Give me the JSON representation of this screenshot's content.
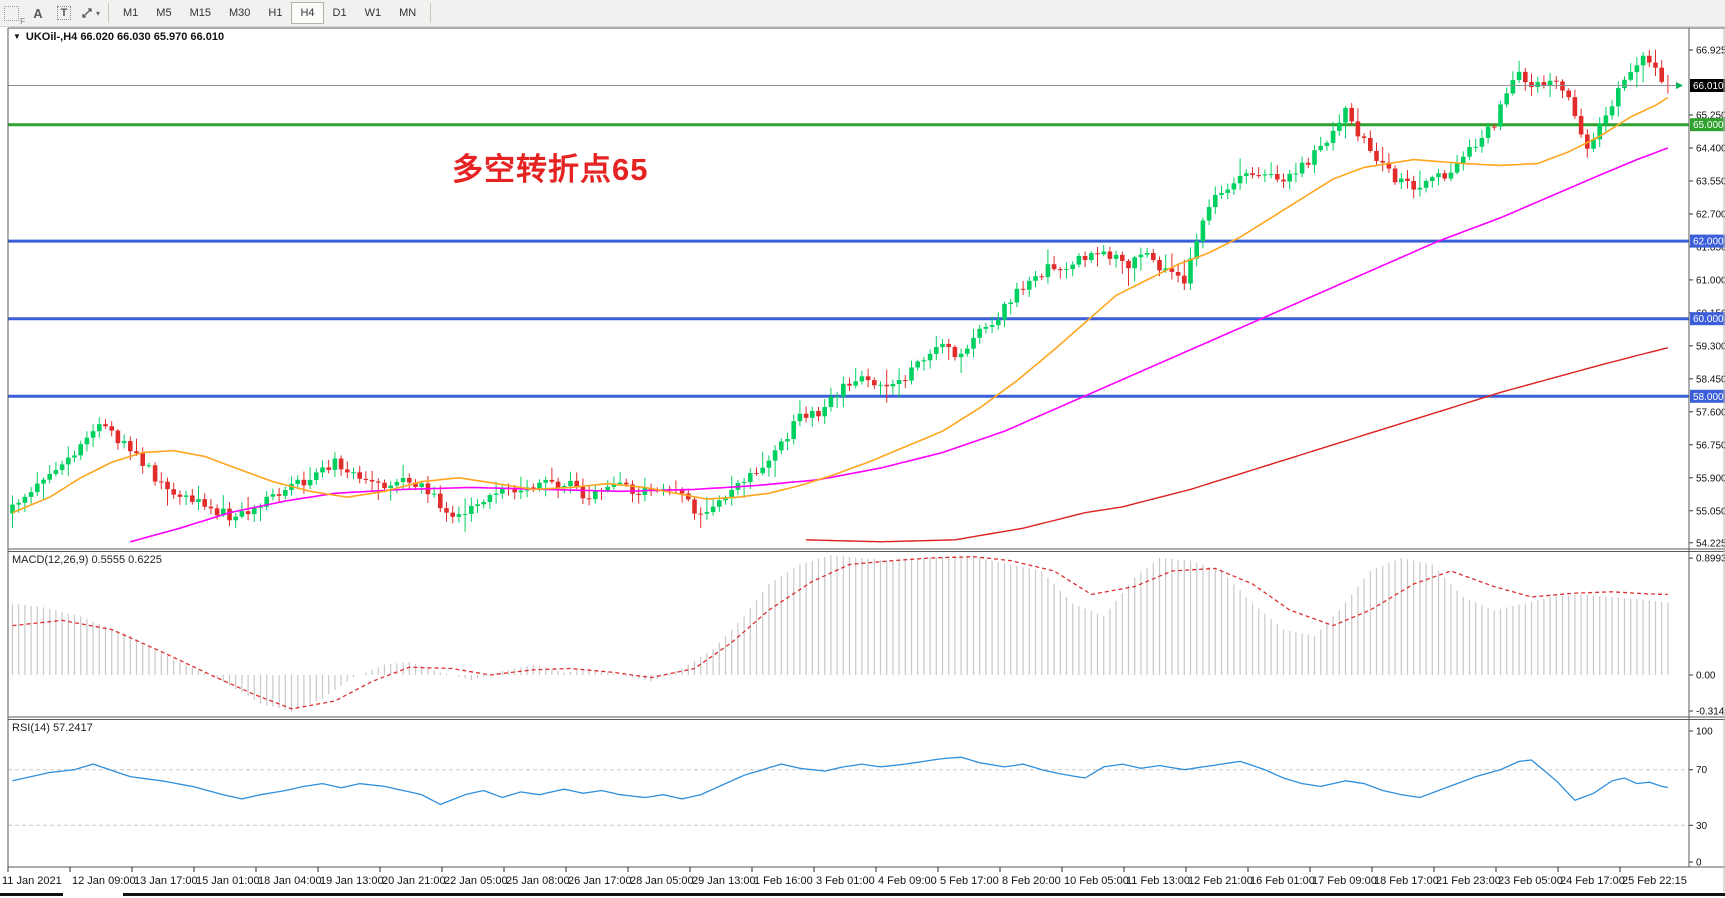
{
  "toolbar": {
    "grip_label": "F",
    "tools": [
      {
        "name": "font-tool",
        "label": "A"
      },
      {
        "name": "text-box-tool",
        "label": "T"
      }
    ],
    "timeframes": [
      "M1",
      "M5",
      "M15",
      "M30",
      "H1",
      "H4",
      "D1",
      "W1",
      "MN"
    ],
    "active_timeframe": "H4"
  },
  "chart_header": {
    "dropdown_icon": "▼",
    "title": "UKOil-,H4  66.020 66.030 65.970 66.010"
  },
  "annotation": {
    "text": "多空转折点65"
  },
  "macd_panel": {
    "label": "MACD(12,26,9) 0.5555 0.6225"
  },
  "rsi_panel": {
    "label": "RSI(14) 57.2417"
  },
  "colors": {
    "up": "#00d05f",
    "down": "#e22b2b",
    "ma_fast": "#ffa51e",
    "ma_mid": "#ff00ff",
    "ma_slow": "#dd2020",
    "level_blue": "#3b5fd9",
    "level_green": "#2ea12e",
    "current_line": "#8b9095",
    "current_badge": "#000000",
    "current_arrow": "#00b050",
    "macd_hist": "#c8c8c8",
    "macd_signal": "#dc3030",
    "rsi_line": "#2d8fdd",
    "rsi_level": "#c8c8c8",
    "annotation": "#e62323",
    "axis_text": "#111111",
    "border": "#5a5a5a"
  },
  "chart_data": {
    "type": "candlestick",
    "symbol": "UKOil-",
    "timeframe": "H4",
    "current": {
      "open": 66.02,
      "high": 66.03,
      "low": 65.97,
      "close": 66.01
    },
    "y_range": [
      54.225,
      66.925
    ],
    "y_ticks": [
      66.925,
      65.25,
      64.4,
      63.55,
      62.7,
      61.85,
      61.0,
      60.15,
      59.3,
      58.45,
      57.6,
      56.75,
      55.9,
      55.05,
      54.225
    ],
    "x_labels": [
      "11 Jan 2021",
      "12 Jan 09:00",
      "13 Jan 17:00",
      "15 Jan 01:00",
      "18 Jan 04:00",
      "19 Jan 13:00",
      "20 Jan 21:00",
      "22 Jan 05:00",
      "25 Jan 08:00",
      "26 Jan 17:00",
      "28 Jan 05:00",
      "29 Jan 13:00",
      "1 Feb 16:00",
      "3 Feb 01:00",
      "4 Feb 09:00",
      "5 Feb 17:00",
      "8 Feb 20:00",
      "10 Feb 05:00",
      "11 Feb 13:00",
      "12 Feb 21:00",
      "16 Feb 01:00",
      "17 Feb 09:00",
      "18 Feb 17:00",
      "21 Feb 23:00",
      "23 Feb 05:00",
      "24 Feb 17:00",
      "25 Feb 22:15"
    ],
    "horizontal_levels": [
      {
        "price": 66.01,
        "label": "66.010",
        "style": "current"
      },
      {
        "price": 65.0,
        "label": "65.000",
        "style": "green"
      },
      {
        "price": 62.0,
        "label": "62.000",
        "style": "blue"
      },
      {
        "price": 60.0,
        "label": "60.000",
        "style": "blue"
      },
      {
        "price": 58.0,
        "label": "58.000",
        "style": "blue"
      }
    ],
    "candles": 268,
    "price_path": [
      [
        0,
        55.1
      ],
      [
        5,
        55.9
      ],
      [
        9,
        56.3
      ],
      [
        14,
        57.3
      ],
      [
        19,
        56.6
      ],
      [
        25,
        55.6
      ],
      [
        30,
        55.3
      ],
      [
        35,
        54.9
      ],
      [
        39,
        55.1
      ],
      [
        43,
        55.5
      ],
      [
        48,
        55.9
      ],
      [
        52,
        56.3
      ],
      [
        56,
        56.0
      ],
      [
        60,
        55.7
      ],
      [
        64,
        55.9
      ],
      [
        68,
        55.4
      ],
      [
        71,
        54.8
      ],
      [
        75,
        55.3
      ],
      [
        80,
        55.6
      ],
      [
        85,
        55.7
      ],
      [
        89,
        55.8
      ],
      [
        93,
        55.4
      ],
      [
        97,
        55.8
      ],
      [
        101,
        55.5
      ],
      [
        105,
        55.7
      ],
      [
        108,
        55.4
      ],
      [
        111,
        54.9
      ],
      [
        114,
        55.4
      ],
      [
        118,
        55.8
      ],
      [
        123,
        56.5
      ],
      [
        127,
        57.5
      ],
      [
        130,
        57.6
      ],
      [
        134,
        58.2
      ],
      [
        137,
        58.4
      ],
      [
        140,
        58.3
      ],
      [
        144,
        58.5
      ],
      [
        147,
        59.0
      ],
      [
        150,
        59.3
      ],
      [
        152,
        59.0
      ],
      [
        155,
        59.5
      ],
      [
        158,
        59.9
      ],
      [
        161,
        60.5
      ],
      [
        164,
        61.0
      ],
      [
        167,
        61.3
      ],
      [
        169,
        61.3
      ],
      [
        172,
        61.5
      ],
      [
        175,
        61.7
      ],
      [
        177,
        61.6
      ],
      [
        180,
        61.4
      ],
      [
        183,
        61.6
      ],
      [
        186,
        61.2
      ],
      [
        189,
        61.0
      ],
      [
        192,
        62.5
      ],
      [
        194,
        63.1
      ],
      [
        197,
        63.5
      ],
      [
        200,
        63.7
      ],
      [
        202,
        63.7
      ],
      [
        205,
        63.6
      ],
      [
        208,
        63.9
      ],
      [
        211,
        64.4
      ],
      [
        213,
        64.8
      ],
      [
        215,
        65.4
      ],
      [
        217,
        64.8
      ],
      [
        219,
        64.3
      ],
      [
        221,
        63.9
      ],
      [
        224,
        63.5
      ],
      [
        227,
        63.4
      ],
      [
        229,
        63.6
      ],
      [
        232,
        63.8
      ],
      [
        235,
        64.3
      ],
      [
        239,
        65.0
      ],
      [
        241,
        65.9
      ],
      [
        243,
        66.4
      ],
      [
        245,
        66.0
      ],
      [
        248,
        66.2
      ],
      [
        251,
        65.6
      ],
      [
        254,
        64.4
      ],
      [
        257,
        65.2
      ],
      [
        260,
        66.2
      ],
      [
        263,
        66.85
      ],
      [
        265,
        66.4
      ],
      [
        267,
        66.01
      ]
    ],
    "ma_fast_path": [
      [
        0,
        55.0
      ],
      [
        6,
        55.4
      ],
      [
        11,
        55.9
      ],
      [
        16,
        56.3
      ],
      [
        21,
        56.55
      ],
      [
        26,
        56.6
      ],
      [
        31,
        56.45
      ],
      [
        36,
        56.15
      ],
      [
        42,
        55.8
      ],
      [
        48,
        55.55
      ],
      [
        54,
        55.4
      ],
      [
        60,
        55.55
      ],
      [
        66,
        55.8
      ],
      [
        72,
        55.9
      ],
      [
        78,
        55.75
      ],
      [
        84,
        55.6
      ],
      [
        90,
        55.65
      ],
      [
        96,
        55.75
      ],
      [
        102,
        55.65
      ],
      [
        107,
        55.5
      ],
      [
        112,
        55.35
      ],
      [
        117,
        55.4
      ],
      [
        122,
        55.5
      ],
      [
        127,
        55.7
      ],
      [
        132,
        55.95
      ],
      [
        138,
        56.3
      ],
      [
        144,
        56.7
      ],
      [
        150,
        57.1
      ],
      [
        156,
        57.7
      ],
      [
        162,
        58.4
      ],
      [
        168,
        59.2
      ],
      [
        173,
        59.9
      ],
      [
        178,
        60.6
      ],
      [
        183,
        61.0
      ],
      [
        188,
        61.4
      ],
      [
        193,
        61.7
      ],
      [
        198,
        62.1
      ],
      [
        203,
        62.6
      ],
      [
        208,
        63.1
      ],
      [
        213,
        63.6
      ],
      [
        218,
        63.9
      ],
      [
        226,
        64.1
      ],
      [
        234,
        64.0
      ],
      [
        240,
        63.95
      ],
      [
        246,
        64.0
      ],
      [
        251,
        64.3
      ],
      [
        256,
        64.7
      ],
      [
        261,
        65.2
      ],
      [
        265,
        65.5
      ],
      [
        267,
        65.7
      ]
    ],
    "ma_mid_path": [
      [
        19,
        54.25
      ],
      [
        27,
        54.6
      ],
      [
        35,
        55.0
      ],
      [
        44,
        55.3
      ],
      [
        52,
        55.5
      ],
      [
        63,
        55.6
      ],
      [
        74,
        55.65
      ],
      [
        86,
        55.6
      ],
      [
        98,
        55.55
      ],
      [
        110,
        55.6
      ],
      [
        120,
        55.7
      ],
      [
        130,
        55.85
      ],
      [
        140,
        56.15
      ],
      [
        150,
        56.55
      ],
      [
        160,
        57.1
      ],
      [
        170,
        57.8
      ],
      [
        180,
        58.5
      ],
      [
        190,
        59.2
      ],
      [
        200,
        59.9
      ],
      [
        210,
        60.6
      ],
      [
        220,
        61.3
      ],
      [
        230,
        62.0
      ],
      [
        240,
        62.6
      ],
      [
        248,
        63.15
      ],
      [
        256,
        63.7
      ],
      [
        262,
        64.1
      ],
      [
        267,
        64.4
      ]
    ],
    "ma_slow_path": [
      [
        128,
        54.3
      ],
      [
        140,
        54.25
      ],
      [
        152,
        54.3
      ],
      [
        163,
        54.6
      ],
      [
        173,
        55.0
      ],
      [
        179,
        55.15
      ],
      [
        190,
        55.6
      ],
      [
        200,
        56.1
      ],
      [
        210,
        56.6
      ],
      [
        220,
        57.1
      ],
      [
        230,
        57.6
      ],
      [
        240,
        58.1
      ],
      [
        248,
        58.45
      ],
      [
        256,
        58.8
      ],
      [
        262,
        59.05
      ],
      [
        267,
        59.25
      ]
    ],
    "macd": {
      "params": "12,26,9",
      "main": 0.5555,
      "signal": 0.6225,
      "y_ticks": [
        0.8993,
        0,
        -0.3143
      ],
      "y_range": [
        -0.4,
        0.97
      ],
      "histogram_path": [
        [
          0,
          0.55
        ],
        [
          5,
          0.52
        ],
        [
          11,
          0.45
        ],
        [
          19,
          0.3
        ],
        [
          26,
          0.12
        ],
        [
          32,
          0.0
        ],
        [
          35,
          -0.08
        ],
        [
          40,
          -0.22
        ],
        [
          45,
          -0.28
        ],
        [
          50,
          -0.18
        ],
        [
          55,
          -0.02
        ],
        [
          60,
          0.08
        ],
        [
          64,
          0.1
        ],
        [
          69,
          0.02
        ],
        [
          74,
          -0.04
        ],
        [
          79,
          0.03
        ],
        [
          84,
          0.08
        ],
        [
          89,
          0.02
        ],
        [
          93,
          0.05
        ],
        [
          98,
          0.0
        ],
        [
          103,
          -0.05
        ],
        [
          108,
          0.05
        ],
        [
          113,
          0.2
        ],
        [
          118,
          0.45
        ],
        [
          122,
          0.7
        ],
        [
          127,
          0.85
        ],
        [
          132,
          0.92
        ],
        [
          137,
          0.9
        ],
        [
          142,
          0.88
        ],
        [
          147,
          0.9
        ],
        [
          152,
          0.92
        ],
        [
          156,
          0.9
        ],
        [
          161,
          0.85
        ],
        [
          166,
          0.8
        ],
        [
          171,
          0.55
        ],
        [
          176,
          0.45
        ],
        [
          181,
          0.75
        ],
        [
          185,
          0.9
        ],
        [
          190,
          0.88
        ],
        [
          195,
          0.8
        ],
        [
          200,
          0.55
        ],
        [
          205,
          0.35
        ],
        [
          210,
          0.3
        ],
        [
          214,
          0.5
        ],
        [
          219,
          0.8
        ],
        [
          224,
          0.9
        ],
        [
          229,
          0.85
        ],
        [
          234,
          0.6
        ],
        [
          239,
          0.5
        ],
        [
          244,
          0.55
        ],
        [
          248,
          0.6
        ],
        [
          253,
          0.62
        ],
        [
          258,
          0.6
        ],
        [
          263,
          0.58
        ],
        [
          267,
          0.556
        ]
      ],
      "signal_path": [
        [
          0,
          0.38
        ],
        [
          8,
          0.42
        ],
        [
          16,
          0.35
        ],
        [
          24,
          0.18
        ],
        [
          32,
          0.0
        ],
        [
          39,
          -0.15
        ],
        [
          45,
          -0.26
        ],
        [
          52,
          -0.2
        ],
        [
          58,
          -0.05
        ],
        [
          64,
          0.06
        ],
        [
          71,
          0.05
        ],
        [
          77,
          0.0
        ],
        [
          84,
          0.04
        ],
        [
          90,
          0.05
        ],
        [
          97,
          0.02
        ],
        [
          103,
          -0.02
        ],
        [
          110,
          0.05
        ],
        [
          116,
          0.25
        ],
        [
          122,
          0.5
        ],
        [
          129,
          0.72
        ],
        [
          135,
          0.85
        ],
        [
          142,
          0.88
        ],
        [
          148,
          0.9
        ],
        [
          155,
          0.91
        ],
        [
          161,
          0.88
        ],
        [
          168,
          0.8
        ],
        [
          174,
          0.62
        ],
        [
          181,
          0.68
        ],
        [
          187,
          0.8
        ],
        [
          194,
          0.82
        ],
        [
          200,
          0.7
        ],
        [
          206,
          0.5
        ],
        [
          213,
          0.38
        ],
        [
          219,
          0.5
        ],
        [
          226,
          0.7
        ],
        [
          232,
          0.8
        ],
        [
          239,
          0.68
        ],
        [
          245,
          0.6
        ],
        [
          252,
          0.63
        ],
        [
          258,
          0.64
        ],
        [
          264,
          0.623
        ],
        [
          267,
          0.62
        ]
      ]
    },
    "rsi": {
      "period": 14,
      "value": 57.2417,
      "y_ticks": [
        100,
        70,
        30,
        0
      ],
      "levels": [
        70,
        30
      ],
      "path": [
        [
          0,
          62
        ],
        [
          3,
          65
        ],
        [
          6,
          68
        ],
        [
          10,
          70
        ],
        [
          13,
          74
        ],
        [
          15,
          71
        ],
        [
          19,
          65
        ],
        [
          24,
          62
        ],
        [
          29,
          58
        ],
        [
          34,
          52
        ],
        [
          37,
          49
        ],
        [
          40,
          52
        ],
        [
          44,
          55
        ],
        [
          47,
          58
        ],
        [
          50,
          60
        ],
        [
          53,
          57
        ],
        [
          56,
          60
        ],
        [
          60,
          58
        ],
        [
          63,
          55
        ],
        [
          66,
          52
        ],
        [
          69,
          45
        ],
        [
          73,
          52
        ],
        [
          76,
          55
        ],
        [
          79,
          50
        ],
        [
          82,
          54
        ],
        [
          85,
          52
        ],
        [
          89,
          56
        ],
        [
          92,
          53
        ],
        [
          95,
          55
        ],
        [
          98,
          52
        ],
        [
          102,
          50
        ],
        [
          105,
          52
        ],
        [
          108,
          49
        ],
        [
          111,
          52
        ],
        [
          115,
          60
        ],
        [
          118,
          66
        ],
        [
          121,
          70
        ],
        [
          124,
          74
        ],
        [
          127,
          71
        ],
        [
          131,
          69
        ],
        [
          134,
          72
        ],
        [
          137,
          74
        ],
        [
          140,
          72
        ],
        [
          144,
          74
        ],
        [
          147,
          76
        ],
        [
          150,
          78
        ],
        [
          153,
          79
        ],
        [
          156,
          75
        ],
        [
          160,
          72
        ],
        [
          163,
          74
        ],
        [
          166,
          70
        ],
        [
          169,
          67
        ],
        [
          173,
          64
        ],
        [
          176,
          72
        ],
        [
          179,
          74
        ],
        [
          182,
          71
        ],
        [
          185,
          73
        ],
        [
          189,
          70
        ],
        [
          192,
          72
        ],
        [
          195,
          74
        ],
        [
          198,
          76
        ],
        [
          202,
          70
        ],
        [
          205,
          64
        ],
        [
          208,
          60
        ],
        [
          211,
          58
        ],
        [
          215,
          62
        ],
        [
          218,
          60
        ],
        [
          221,
          55
        ],
        [
          224,
          52
        ],
        [
          227,
          50
        ],
        [
          230,
          55
        ],
        [
          233,
          60
        ],
        [
          236,
          65
        ],
        [
          240,
          70
        ],
        [
          243,
          76
        ],
        [
          245,
          77
        ],
        [
          249,
          62
        ],
        [
          252,
          48
        ],
        [
          255,
          53
        ],
        [
          258,
          62
        ],
        [
          260,
          64
        ],
        [
          262,
          60
        ],
        [
          264,
          61
        ],
        [
          266,
          58
        ],
        [
          267,
          57.2
        ]
      ]
    }
  }
}
